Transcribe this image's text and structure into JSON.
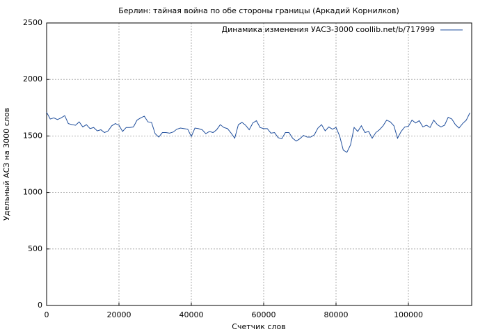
{
  "chart_data": {
    "type": "line",
    "title": "Берлин: тайная война по обе стороны границы (Аркадий Корнилков)",
    "xlabel": "Счетчик слов",
    "ylabel": "Удельный АСЗ на 3000 слов",
    "x": [
      0,
      1000,
      2000,
      3000,
      4000,
      5000,
      6000,
      7000,
      8000,
      9000,
      10000,
      11000,
      12000,
      13000,
      14000,
      15000,
      16000,
      17000,
      18000,
      19000,
      20000,
      21000,
      22000,
      23000,
      24000,
      25000,
      26000,
      27000,
      28000,
      29000,
      30000,
      31000,
      32000,
      33000,
      34000,
      35000,
      36000,
      37000,
      38000,
      39000,
      40000,
      41000,
      42000,
      43000,
      44000,
      45000,
      46000,
      47000,
      48000,
      49000,
      50000,
      51000,
      52000,
      53000,
      54000,
      55000,
      56000,
      57000,
      58000,
      59000,
      60000,
      61000,
      62000,
      63000,
      64000,
      65000,
      66000,
      67000,
      68000,
      69000,
      70000,
      71000,
      72000,
      73000,
      74000,
      75000,
      76000,
      77000,
      78000,
      79000,
      80000,
      81000,
      82000,
      83000,
      84000,
      85000,
      86000,
      87000,
      88000,
      89000,
      90000,
      91000,
      92000,
      93000,
      94000,
      95000,
      96000,
      97000,
      98000,
      99000,
      100000,
      101000,
      102000,
      103000,
      104000,
      105000,
      106000,
      107000,
      108000,
      109000,
      110000,
      111000,
      112000,
      113000,
      114000,
      115000,
      116000,
      117000
    ],
    "series": [
      {
        "name": "Динамика изменения УАСЗ-3000 coollib.net/b/717999",
        "color": "#1f4e9c",
        "values": [
          1710,
          1650,
          1660,
          1645,
          1660,
          1680,
          1610,
          1600,
          1595,
          1625,
          1580,
          1600,
          1565,
          1575,
          1545,
          1555,
          1530,
          1545,
          1590,
          1610,
          1595,
          1540,
          1575,
          1575,
          1580,
          1640,
          1660,
          1675,
          1625,
          1620,
          1520,
          1490,
          1530,
          1530,
          1525,
          1535,
          1560,
          1570,
          1565,
          1560,
          1495,
          1570,
          1565,
          1555,
          1520,
          1540,
          1530,
          1555,
          1600,
          1575,
          1565,
          1525,
          1480,
          1600,
          1620,
          1595,
          1555,
          1615,
          1635,
          1575,
          1565,
          1565,
          1525,
          1530,
          1485,
          1475,
          1530,
          1530,
          1480,
          1455,
          1475,
          1505,
          1490,
          1490,
          1510,
          1570,
          1600,
          1545,
          1580,
          1560,
          1575,
          1500,
          1375,
          1355,
          1420,
          1575,
          1540,
          1590,
          1530,
          1540,
          1480,
          1530,
          1555,
          1590,
          1640,
          1625,
          1590,
          1480,
          1540,
          1580,
          1585,
          1640,
          1615,
          1635,
          1580,
          1595,
          1575,
          1640,
          1600,
          1580,
          1595,
          1665,
          1650,
          1600,
          1570,
          1610,
          1640,
          1705
        ]
      }
    ],
    "xlim": [
      0,
      117500
    ],
    "ylim": [
      0,
      2500
    ],
    "xticks": [
      0,
      20000,
      40000,
      60000,
      80000,
      100000
    ],
    "yticks": [
      0,
      500,
      1000,
      1500,
      2000,
      2500
    ],
    "grid": true,
    "legend": "upper right"
  }
}
